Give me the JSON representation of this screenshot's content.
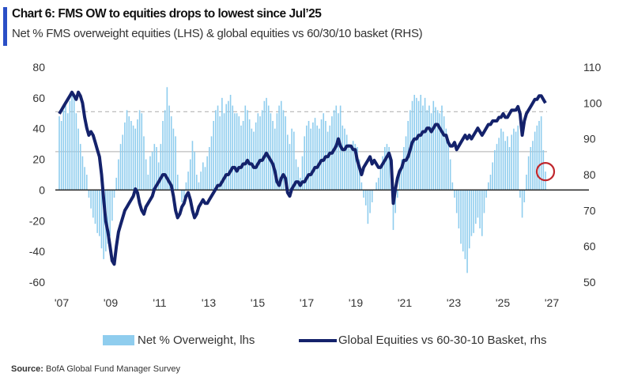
{
  "colors": {
    "accent": "#2a4fc6",
    "bars": "#8fcdee",
    "line": "#14226b",
    "zero": "#222222",
    "ref": "#bdbdbd",
    "marker": "#c0262c"
  },
  "chart_data": {
    "type": "bar+line",
    "title": "Chart 6: FMS OW to equities drops to lowest since Jul’25",
    "subtitle": "Net % FMS overweight equities (LHS) & global equities vs 60/30/10 basket (RHS)",
    "x_start": "2007-01",
    "x_end": "2026-03",
    "frequency": "monthly",
    "x_ticks": [
      "'07",
      "'09",
      "'11",
      "'13",
      "'15",
      "'17",
      "'19",
      "'21",
      "'23",
      "'25",
      "'27"
    ],
    "x_tick_years": [
      2007,
      2009,
      2011,
      2013,
      2015,
      2017,
      2019,
      2021,
      2023,
      2025,
      2027
    ],
    "ylim_left": [
      -60,
      80
    ],
    "yticks_left": [
      "80",
      "60",
      "40",
      "20",
      "0",
      "-20",
      "-40",
      "-60"
    ],
    "ylim_right": [
      50,
      110
    ],
    "yticks_right": [
      "110",
      "100",
      "90",
      "80",
      "70",
      "60",
      "50"
    ],
    "reference_lines_lhs": [
      {
        "value": 51,
        "style": "dashed"
      },
      {
        "value": 25,
        "style": "solid"
      },
      {
        "value": 0,
        "style": "zero"
      }
    ],
    "highlight": {
      "date": "2026-03",
      "value": 12
    },
    "series": [
      {
        "name": "Net % Overweight, lhs",
        "type": "bar",
        "axis": "left",
        "values": [
          48,
          45,
          52,
          55,
          50,
          58,
          62,
          60,
          50,
          40,
          30,
          22,
          15,
          10,
          -5,
          -12,
          -18,
          -22,
          -28,
          -30,
          -38,
          -45,
          -40,
          -35,
          -30,
          -20,
          -5,
          8,
          20,
          30,
          36,
          44,
          52,
          48,
          45,
          42,
          40,
          46,
          52,
          50,
          35,
          20,
          10,
          22,
          25,
          30,
          28,
          18,
          30,
          45,
          52,
          67,
          55,
          48,
          40,
          35,
          10,
          0,
          -8,
          -5,
          5,
          12,
          20,
          32,
          25,
          10,
          5,
          12,
          18,
          15,
          22,
          28,
          35,
          45,
          52,
          55,
          48,
          60,
          50,
          56,
          58,
          62,
          55,
          50,
          50,
          48,
          42,
          45,
          55,
          52,
          46,
          40,
          38,
          44,
          50,
          48,
          52,
          58,
          60,
          55,
          50,
          45,
          40,
          50,
          55,
          58,
          52,
          48,
          36,
          30,
          40,
          38,
          20,
          15,
          8,
          22,
          35,
          42,
          45,
          40,
          44,
          47,
          42,
          40,
          46,
          50,
          45,
          38,
          42,
          48,
          52,
          55,
          50,
          55,
          42,
          40,
          36,
          30,
          28,
          32,
          30,
          28,
          20,
          5,
          -5,
          -10,
          -22,
          -15,
          -8,
          0,
          5,
          8,
          15,
          22,
          28,
          30,
          28,
          22,
          -26,
          -15,
          -5,
          12,
          20,
          28,
          35,
          45,
          52,
          58,
          62,
          60,
          58,
          62,
          55,
          60,
          52,
          55,
          50,
          58,
          54,
          52,
          50,
          55,
          48,
          40,
          30,
          20,
          5,
          -5,
          -15,
          -25,
          -35,
          -40,
          -45,
          -54,
          -38,
          -30,
          -28,
          -22,
          -18,
          -25,
          -30,
          -15,
          -5,
          5,
          10,
          18,
          26,
          30,
          34,
          40,
          38,
          32,
          35,
          28,
          36,
          40,
          38,
          42,
          -5,
          -18,
          -8,
          10,
          22,
          28,
          32,
          38,
          42,
          45,
          48,
          26,
          12
        ]
      },
      {
        "name": "Global Equities vs 60-30-10 Basket, rhs",
        "type": "line",
        "axis": "right",
        "values": [
          97,
          98,
          99,
          100,
          101,
          102,
          103,
          102,
          101,
          103,
          102,
          100,
          96,
          93,
          91,
          92,
          91,
          89,
          87,
          85,
          80,
          73,
          67,
          64,
          60,
          56,
          55,
          60,
          64,
          66,
          68,
          70,
          71,
          72,
          73,
          74,
          76,
          75,
          72,
          70,
          69,
          71,
          72,
          73,
          74,
          76,
          77,
          78,
          79,
          80,
          80,
          79,
          78,
          77,
          74,
          70,
          68,
          69,
          71,
          72,
          74,
          75,
          73,
          70,
          68,
          69,
          71,
          72,
          73,
          72,
          72,
          73,
          74,
          75,
          76,
          77,
          77,
          78,
          79,
          80,
          80,
          81,
          82,
          82,
          81,
          82,
          82,
          83,
          83,
          84,
          83,
          83,
          82,
          82,
          83,
          84,
          84,
          85,
          86,
          85,
          84,
          83,
          81,
          78,
          77,
          79,
          80,
          79,
          75,
          74,
          76,
          77,
          78,
          78,
          77,
          78,
          78,
          79,
          80,
          80,
          81,
          82,
          82,
          83,
          84,
          84,
          85,
          85,
          86,
          86,
          87,
          88,
          90,
          88,
          87,
          87,
          88,
          88,
          88,
          87,
          87,
          84,
          82,
          80,
          82,
          83,
          84,
          85,
          83,
          84,
          83,
          82,
          82,
          83,
          84,
          85,
          86,
          84,
          72,
          76,
          79,
          81,
          82,
          84,
          84,
          85,
          87,
          89,
          90,
          90,
          91,
          91,
          92,
          92,
          93,
          93,
          92,
          93,
          94,
          94,
          93,
          92,
          91,
          91,
          89,
          88,
          88,
          89,
          87,
          88,
          89,
          90,
          91,
          90,
          91,
          90,
          91,
          92,
          93,
          92,
          91,
          92,
          93,
          94,
          94,
          95,
          95,
          95,
          96,
          96,
          97,
          96,
          96,
          97,
          98,
          98,
          98,
          99,
          97,
          91,
          95,
          97,
          98,
          99,
          100,
          101,
          101,
          102,
          102,
          101,
          100
        ]
      }
    ],
    "legend": {
      "bars": "Net % Overweight, lhs",
      "line": "Global Equities vs 60-30-10 Basket, rhs",
      "placement": "bottom"
    },
    "source_label": "Source:",
    "source_text": "BofA Global Fund Manager Survey"
  }
}
